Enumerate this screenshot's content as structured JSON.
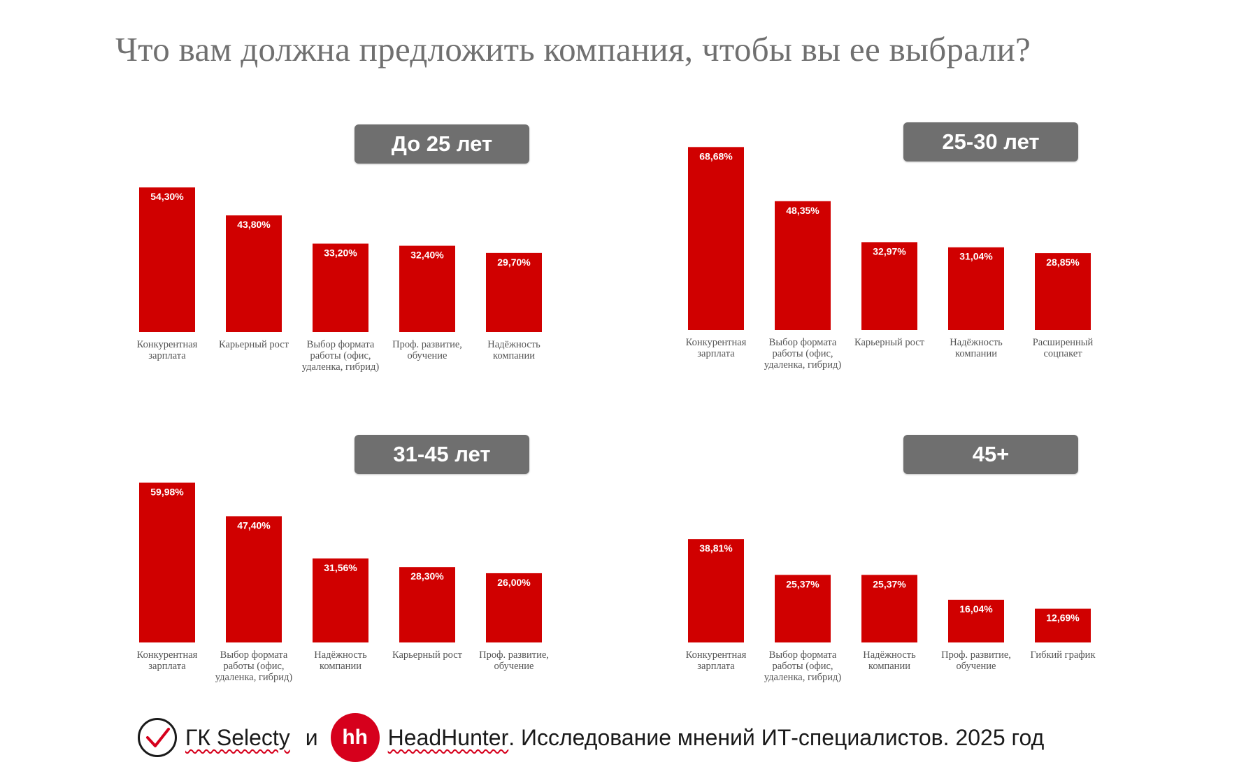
{
  "title": "Что вам должна предложить компания, чтобы вы ее выбрали?",
  "colors": {
    "bar": "#d00000",
    "badge": "#6f6f6f",
    "hh": "#d6001c"
  },
  "chart_data": [
    {
      "type": "bar",
      "title": "До 25 лет",
      "categories": [
        "Конкурентная зарплата",
        "Карьерный рост",
        "Выбор формата работы (офис, удаленка, гибрид)",
        "Проф. развитие, обучение",
        "Надёжность компании"
      ],
      "values": [
        54.3,
        43.8,
        33.2,
        32.4,
        29.7
      ],
      "value_labels": [
        "54,30%",
        "43,80%",
        "33,20%",
        "32,40%",
        "29,70%"
      ]
    },
    {
      "type": "bar",
      "title": "25-30 лет",
      "categories": [
        "Конкурентная зарплата",
        "Выбор формата работы (офис, удаленка, гибрид)",
        "Карьерный рост",
        "Надёжность компании",
        "Расширенный соцпакет"
      ],
      "values": [
        68.68,
        48.35,
        32.97,
        31.04,
        28.85
      ],
      "value_labels": [
        "68,68%",
        "48,35%",
        "32,97%",
        "31,04%",
        "28,85%"
      ]
    },
    {
      "type": "bar",
      "title": "31-45 лет",
      "categories": [
        "Конкурентная зарплата",
        "Выбор формата работы (офис, удаленка, гибрид)",
        "Надёжность компании",
        "Карьерный рост",
        "Проф. развитие, обучение"
      ],
      "values": [
        59.98,
        47.4,
        31.56,
        28.3,
        26.0
      ],
      "value_labels": [
        "59,98%",
        "47,40%",
        "31,56%",
        "28,30%",
        "26,00%"
      ]
    },
    {
      "type": "bar",
      "title": "45+",
      "categories": [
        "Конкурентная зарплата",
        "Выбор формата работы (офис, удаленка, гибрид)",
        "Надёжность компании",
        "Проф. развитие, обучение",
        "Гибкий график"
      ],
      "values": [
        38.81,
        25.37,
        25.37,
        16.04,
        12.69
      ],
      "value_labels": [
        "38,81%",
        "25,37%",
        "25,37%",
        "16,04%",
        "12,69%"
      ]
    }
  ],
  "footer": {
    "selecty_logo_icon": "checkmark-circle-icon",
    "selecty": "ГК Selecty",
    "conjunction": "и",
    "hh_logo_text": "hh",
    "headhunter": "HeadHunter",
    "text": ". Исследование мнений ИТ-специалистов. 2025 год"
  }
}
